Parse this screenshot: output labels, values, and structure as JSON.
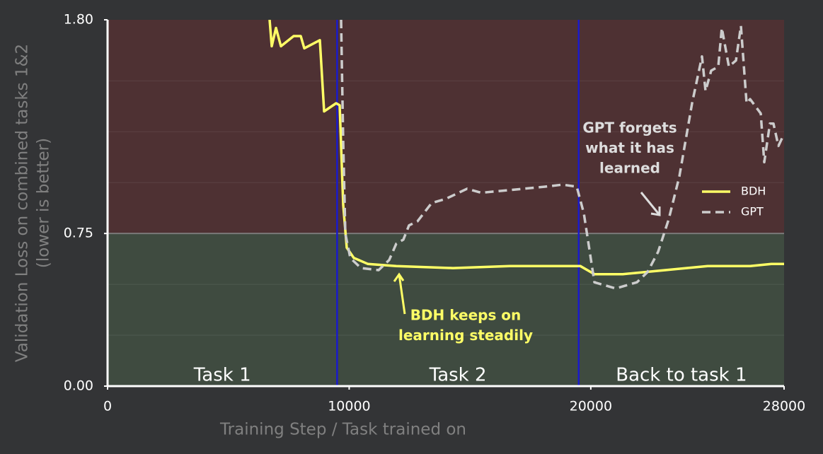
{
  "chart_data": {
    "type": "line",
    "xlabel": "Training Step / Task trained on",
    "ylabel": [
      "Validation Loss on combined tasks 1&2",
      "(lower is better)"
    ],
    "xlim": [
      0,
      28000
    ],
    "ylim": [
      0,
      1.8
    ],
    "xticks": [
      0,
      10000,
      20000,
      28000
    ],
    "yticks": [
      {
        "value": 0,
        "label": "0.00"
      },
      {
        "value": 0.75,
        "label": "0.75"
      },
      {
        "value": 1.8,
        "label": "1.80"
      }
    ],
    "minor_gridlines": [
      0.25,
      0.5,
      1,
      1.25,
      1.5
    ],
    "threshold": 0.75,
    "task_boundaries": [
      9500,
      19500
    ],
    "task_labels": [
      "Task 1",
      "Task 2",
      "Back to task 1"
    ],
    "legend": "right",
    "series": [
      {
        "name": "BDH",
        "color": "#ffff66",
        "dash": false,
        "x": [
          6707,
          6795,
          6971,
          7176,
          7703,
          7996,
          8142,
          8787,
          8962,
          9460,
          9606,
          9753,
          9899,
          10192,
          10778,
          11950,
          14293,
          16637,
          19565,
          20150,
          21322,
          23080,
          24836,
          26594,
          27473,
          28000
        ],
        "values": [
          1.8,
          1.67,
          1.76,
          1.67,
          1.72,
          1.72,
          1.66,
          1.7,
          1.35,
          1.39,
          1.38,
          0.89,
          0.68,
          0.63,
          0.6,
          0.59,
          0.58,
          0.59,
          0.59,
          0.55,
          0.55,
          0.57,
          0.59,
          0.59,
          0.6,
          0.6
        ]
      },
      {
        "name": "GPT",
        "color": "#cccccc",
        "dash": true,
        "x": [
          9665,
          9753,
          9841,
          10046,
          10485,
          11218,
          11657,
          11950,
          12243,
          12477,
          12829,
          13415,
          14000,
          14879,
          15465,
          16344,
          17222,
          18101,
          18833,
          19419,
          19711,
          20150,
          21029,
          21908,
          22347,
          22786,
          23226,
          23665,
          24192,
          24602,
          24748,
          24983,
          25276,
          25422,
          25715,
          26008,
          26213,
          26447,
          26594,
          27033,
          27180,
          27414,
          27561,
          27766,
          28000
        ],
        "values": [
          1.8,
          1.2,
          0.75,
          0.63,
          0.58,
          0.57,
          0.62,
          0.7,
          0.72,
          0.79,
          0.81,
          0.9,
          0.92,
          0.97,
          0.95,
          0.96,
          0.97,
          0.98,
          0.99,
          0.98,
          0.85,
          0.51,
          0.48,
          0.51,
          0.56,
          0.66,
          0.82,
          1.03,
          1.39,
          1.62,
          1.45,
          1.55,
          1.57,
          1.76,
          1.57,
          1.6,
          1.77,
          1.39,
          1.41,
          1.34,
          1.1,
          1.29,
          1.29,
          1.18,
          1.24
        ]
      }
    ],
    "annotations": [
      {
        "lines": [
          "GPT forgets",
          "what it has",
          "learned"
        ],
        "color": "#dddddd"
      },
      {
        "lines": [
          "BDH keeps on",
          "learning steadily"
        ],
        "color": "#ffff66"
      }
    ]
  }
}
